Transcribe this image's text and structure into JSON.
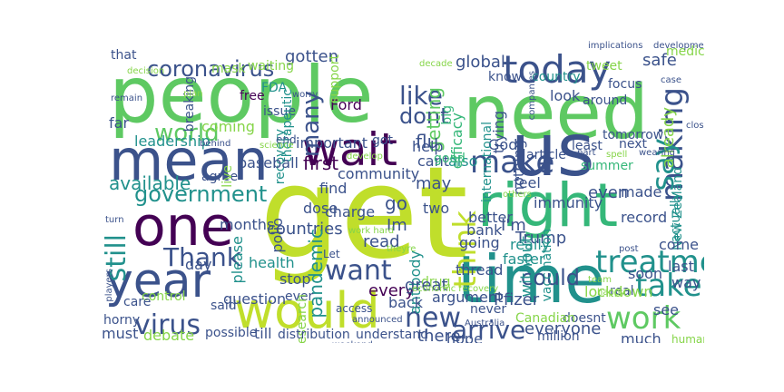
{
  "word_cloud": {
    "palette": {
      "yellow_green": "#c0de2b",
      "green": "#5ec962",
      "teal": "#21918c",
      "blue": "#3b528b",
      "purple": "#440154",
      "light_green": "#86d549",
      "cyan_green": "#35b779"
    },
    "words": [
      {
        "text": "get",
        "color": "#c0de2b"
      },
      {
        "text": "people",
        "color": "#5ec962"
      },
      {
        "text": "need",
        "color": "#5ec962"
      },
      {
        "text": "us",
        "color": "#3b528b"
      },
      {
        "text": "right",
        "color": "#35b779"
      },
      {
        "text": "time",
        "color": "#21918c"
      },
      {
        "text": "mean",
        "color": "#3b528b"
      },
      {
        "text": "wait",
        "color": "#440154"
      },
      {
        "text": "one",
        "color": "#440154"
      },
      {
        "text": "year",
        "color": "#3b528b"
      },
      {
        "text": "would",
        "color": "#c0de2b"
      },
      {
        "text": "today",
        "color": "#3b528b"
      },
      {
        "text": "world",
        "color": "#5ec962"
      },
      {
        "text": "coronavirus",
        "color": "#3b528b"
      },
      {
        "text": "making",
        "color": "#3b528b"
      },
      {
        "text": "make",
        "color": "#3b528b"
      },
      {
        "text": "say",
        "color": "#21918c"
      },
      {
        "text": "government",
        "color": "#21918c"
      },
      {
        "text": "think",
        "color": "#c0de2b"
      },
      {
        "text": "treatment",
        "color": "#21918c"
      },
      {
        "text": "take",
        "color": "#21918c"
      },
      {
        "text": "work",
        "color": "#5ec962"
      },
      {
        "text": "want",
        "color": "#3b528b"
      },
      {
        "text": "Thank",
        "color": "#3b528b"
      },
      {
        "text": "virus",
        "color": "#3b528b"
      },
      {
        "text": "new",
        "color": "#3b528b"
      },
      {
        "text": "arrive",
        "color": "#3b528b"
      },
      {
        "text": "still",
        "color": "#21918c"
      },
      {
        "text": "like",
        "color": "#3b528b"
      },
      {
        "text": "dont",
        "color": "#3b528b"
      },
      {
        "text": "many",
        "color": "#3b528b"
      },
      {
        "text": "could",
        "color": "#3b528b"
      },
      {
        "text": "gotten",
        "color": "#3b528b"
      },
      {
        "text": "global",
        "color": "#3b528b"
      },
      {
        "text": "safe",
        "color": "#3b528b"
      },
      {
        "text": "first",
        "color": "#440154"
      },
      {
        "text": "Trump",
        "color": "#3b528b"
      },
      {
        "text": "Pfizer",
        "color": "#3b528b"
      },
      {
        "text": "everyone",
        "color": "#3b528b"
      },
      {
        "text": "available",
        "color": "#21918c"
      },
      {
        "text": "leadership",
        "color": "#21918c"
      },
      {
        "text": "that",
        "color": "#3b528b"
      },
      {
        "text": "mask",
        "color": "#86d549"
      },
      {
        "text": "waiting",
        "color": "#86d549"
      },
      {
        "text": "tweet",
        "color": "#86d549"
      },
      {
        "text": "medical",
        "color": "#86d549"
      },
      {
        "text": "know",
        "color": "#3b528b"
      },
      {
        "text": "country",
        "color": "#21918c"
      },
      {
        "text": "look",
        "color": "#3b528b"
      },
      {
        "text": "getting",
        "color": "#5ec962"
      },
      {
        "text": "flu",
        "color": "#3b528b"
      },
      {
        "text": "already",
        "color": "#86d549"
      },
      {
        "text": "FDA",
        "color": "#21918c"
      },
      {
        "text": "free",
        "color": "#440154"
      },
      {
        "text": "issue",
        "color": "#3b528b"
      },
      {
        "text": "Ford",
        "color": "#440154"
      },
      {
        "text": "therapeutic",
        "color": "#21918c"
      },
      {
        "text": "support",
        "color": "#86d549"
      },
      {
        "text": "big",
        "color": "#35b779"
      },
      {
        "text": "efficacy",
        "color": "#35b779"
      },
      {
        "text": "coming",
        "color": "#86d549"
      },
      {
        "text": "far",
        "color": "#3b528b"
      },
      {
        "text": "breaking",
        "color": "#3b528b"
      },
      {
        "text": "recovery",
        "color": "#21918c"
      },
      {
        "text": "important",
        "color": "#3b528b"
      },
      {
        "text": "end",
        "color": "#3b528b"
      },
      {
        "text": "help",
        "color": "#3b528b"
      },
      {
        "text": "cant",
        "color": "#3b528b"
      },
      {
        "text": "God",
        "color": "#3b528b"
      },
      {
        "text": "also",
        "color": "#21918c"
      },
      {
        "text": "article",
        "color": "#3b528b"
      },
      {
        "text": "trying",
        "color": "#3b528b"
      },
      {
        "text": "least",
        "color": "#3b528b"
      },
      {
        "text": "tomorrow",
        "color": "#3b528b"
      },
      {
        "text": "next",
        "color": "#3b528b"
      },
      {
        "text": "feel",
        "color": "#3b528b"
      },
      {
        "text": "nothing",
        "color": "#3b528b"
      },
      {
        "text": "international",
        "color": "#21918c"
      },
      {
        "text": "good",
        "color": "#35b779"
      },
      {
        "text": "even",
        "color": "#3b528b"
      },
      {
        "text": "made",
        "color": "#3b528b"
      },
      {
        "text": "immunity",
        "color": "#3b528b"
      },
      {
        "text": "record",
        "color": "#3b528b"
      },
      {
        "text": "New Zealand",
        "color": "#21918c"
      },
      {
        "text": "actually",
        "color": "#21918c"
      },
      {
        "text": "summer",
        "color": "#35b779"
      },
      {
        "text": "got",
        "color": "#3b528b"
      },
      {
        "text": "may",
        "color": "#3b528b"
      },
      {
        "text": "go",
        "color": "#3b528b"
      },
      {
        "text": "two",
        "color": "#3b528b"
      },
      {
        "text": "find",
        "color": "#3b528b"
      },
      {
        "text": "community",
        "color": "#3b528b"
      },
      {
        "text": "baseball",
        "color": "#3b528b"
      },
      {
        "text": "agree",
        "color": "#3b528b"
      },
      {
        "text": "live",
        "color": "#86d549"
      },
      {
        "text": "dose",
        "color": "#3b528b"
      },
      {
        "text": "charge",
        "color": "#3b528b"
      },
      {
        "text": "polio",
        "color": "#3b528b"
      },
      {
        "text": "better",
        "color": "#3b528b"
      },
      {
        "text": "bank",
        "color": "#3b528b"
      },
      {
        "text": "going",
        "color": "#3b528b"
      },
      {
        "text": "I'm",
        "color": "#3b528b"
      },
      {
        "text": "really",
        "color": "#21918c"
      },
      {
        "text": "faster",
        "color": "#21918c"
      },
      {
        "text": "Im",
        "color": "#3b528b"
      },
      {
        "text": "read",
        "color": "#3b528b"
      },
      {
        "text": "months",
        "color": "#3b528b"
      },
      {
        "text": "countries",
        "color": "#3b528b"
      },
      {
        "text": "please",
        "color": "#21918c"
      },
      {
        "text": "pandemic",
        "color": "#21918c"
      },
      {
        "text": "health",
        "color": "#21918c"
      },
      {
        "text": "day",
        "color": "#3b528b"
      },
      {
        "text": "stop",
        "color": "#3b528b"
      },
      {
        "text": "antibody",
        "color": "#21918c"
      },
      {
        "text": "drug",
        "color": "#86d549"
      },
      {
        "text": "thread",
        "color": "#3b528b"
      },
      {
        "text": "come",
        "color": "#3b528b"
      },
      {
        "text": "last",
        "color": "#3b528b"
      },
      {
        "text": "way",
        "color": "#3b528b"
      },
      {
        "text": "soon",
        "color": "#3b528b"
      },
      {
        "text": "real",
        "color": "#3b528b"
      },
      {
        "text": "every",
        "color": "#440154"
      },
      {
        "text": "great",
        "color": "#3b528b"
      },
      {
        "text": "argument",
        "color": "#3b528b"
      },
      {
        "text": "without",
        "color": "#21918c"
      },
      {
        "text": "vaccination",
        "color": "#21918c"
      },
      {
        "text": "lockdown",
        "color": "#86d549"
      },
      {
        "text": "question",
        "color": "#3b528b"
      },
      {
        "text": "ever",
        "color": "#3b528b"
      },
      {
        "text": "back",
        "color": "#3b528b"
      },
      {
        "text": "never",
        "color": "#3b528b"
      },
      {
        "text": "control",
        "color": "#86d549"
      },
      {
        "text": "care",
        "color": "#3b528b"
      },
      {
        "text": "horny",
        "color": "#3b528b"
      },
      {
        "text": "said",
        "color": "#3b528b"
      },
      {
        "text": "research",
        "color": "#86d549"
      },
      {
        "text": "access",
        "color": "#3b528b"
      },
      {
        "text": "must",
        "color": "#3b528b"
      },
      {
        "text": "debate",
        "color": "#86d549"
      },
      {
        "text": "possible",
        "color": "#3b528b"
      },
      {
        "text": "till",
        "color": "#3b528b"
      },
      {
        "text": "distribution",
        "color": "#3b528b"
      },
      {
        "text": "understand",
        "color": "#3b528b"
      },
      {
        "text": "there",
        "color": "#3b528b"
      },
      {
        "text": "hope",
        "color": "#3b528b"
      },
      {
        "text": "million",
        "color": "#3b528b"
      },
      {
        "text": "much",
        "color": "#3b528b"
      },
      {
        "text": "see",
        "color": "#3b528b"
      },
      {
        "text": "human",
        "color": "#86d549"
      },
      {
        "text": "doesnt",
        "color": "#3b528b"
      },
      {
        "text": "Canadian",
        "color": "#86d549"
      },
      {
        "text": "Let",
        "color": "#3b528b"
      },
      {
        "text": "focus",
        "color": "#3b528b"
      },
      {
        "text": "around",
        "color": "#3b528b"
      },
      {
        "text": "implications",
        "color": "#3b528b"
      },
      {
        "text": "development",
        "color": "#3b528b"
      },
      {
        "text": "decision",
        "color": "#86d549"
      },
      {
        "text": "decade",
        "color": "#86d549"
      },
      {
        "text": "companies",
        "color": "#3b528b"
      },
      {
        "text": "remain",
        "color": "#3b528b"
      },
      {
        "text": "plan",
        "color": "#86d549"
      },
      {
        "text": "worry",
        "color": "#3b528b"
      },
      {
        "text": "behind",
        "color": "#3b528b"
      },
      {
        "text": "science",
        "color": "#86d549"
      },
      {
        "text": "develop",
        "color": "#86d549"
      },
      {
        "text": "case",
        "color": "#3b528b"
      },
      {
        "text": "closer",
        "color": "#3b528b"
      },
      {
        "text": "turn",
        "color": "#3b528b"
      },
      {
        "text": "others",
        "color": "#86d549"
      },
      {
        "text": "weekend",
        "color": "#3b528b"
      },
      {
        "text": "announced",
        "color": "#3b528b"
      },
      {
        "text": "Australia",
        "color": "#3b528b"
      },
      {
        "text": "economic recovery",
        "color": "#86d549"
      },
      {
        "text": "players",
        "color": "#3b528b"
      },
      {
        "text": "happy",
        "color": "#86d549"
      },
      {
        "text": "team",
        "color": "#86d549"
      },
      {
        "text": "theyre",
        "color": "#86d549"
      },
      {
        "text": "post",
        "color": "#3b528b"
      },
      {
        "text": "part",
        "color": "#3b528b"
      },
      {
        "text": "spell",
        "color": "#86d549"
      },
      {
        "text": "wearing",
        "color": "#3b528b"
      },
      {
        "text": "work hard",
        "color": "#86d549"
      }
    ]
  }
}
